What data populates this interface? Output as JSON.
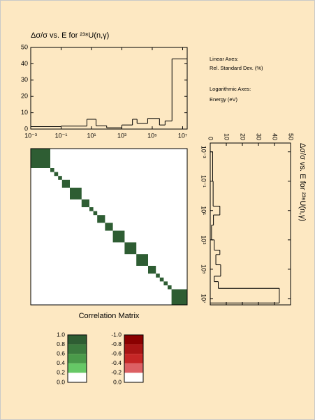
{
  "chart_data": [
    {
      "type": "histogram",
      "orientation": "vertical",
      "title": "Δσ/σ vs. E for ²³⁸U(n,γ)",
      "annotations": [
        "Linear Axes:",
        "Rel. Standard Dev. (%)",
        "Logarithmic Axes:",
        "Energy (eV)"
      ],
      "bins": [
        0.001,
        0.1,
        5,
        20,
        100,
        1000,
        5000,
        10000,
        50000,
        300000,
        700000,
        2000000,
        20000000
      ],
      "values": [
        1.5,
        1.8,
        6,
        2,
        0.8,
        2.5,
        6,
        3.5,
        6.5,
        2.5,
        5,
        43
      ],
      "xlog": true,
      "xlim": [
        0.001,
        20000000
      ],
      "xticks": [
        {
          "value": 0.001,
          "label": "10⁻³"
        },
        {
          "value": 0.1,
          "label": "10⁻¹"
        },
        {
          "value": 10,
          "label": "10¹"
        },
        {
          "value": 1000,
          "label": "10³"
        },
        {
          "value": 100000,
          "label": "10⁵"
        },
        {
          "value": 10000000,
          "label": "10⁷"
        }
      ],
      "ylim": [
        0,
        50
      ],
      "yticks": [
        0,
        10,
        20,
        30,
        40,
        50
      ],
      "color": "#000000"
    },
    {
      "type": "histogram",
      "orientation": "horizontal",
      "title": "Δσ/σ vs. E for ²³⁸U(n,γ)",
      "bins": [
        0.001,
        0.1,
        5,
        20,
        100,
        1000,
        5000,
        10000,
        50000,
        300000,
        700000,
        2000000,
        20000000
      ],
      "values": [
        1.5,
        1.8,
        6,
        2,
        0.8,
        2.5,
        6,
        3.5,
        6.5,
        2.5,
        5,
        43
      ],
      "ylog": true,
      "ylim": [
        0.00025,
        27000000
      ],
      "yticks": [
        {
          "value": 0.001,
          "label": "10⁻³"
        },
        {
          "value": 0.1,
          "label": "10⁻¹"
        },
        {
          "value": 10,
          "label": "10¹"
        },
        {
          "value": 1000,
          "label": "10³"
        },
        {
          "value": 100000,
          "label": "10⁵"
        },
        {
          "value": 10000000,
          "label": "10⁷"
        }
      ],
      "xlim": [
        0,
        50
      ],
      "xticks": [
        0,
        10,
        20,
        30,
        40,
        50
      ],
      "color": "#000000"
    },
    {
      "type": "matrix",
      "title": "Correlation Matrix",
      "group_sizes": [
        5,
        1,
        1,
        1,
        2,
        3,
        2,
        1,
        1,
        2,
        2,
        3,
        3,
        3,
        2,
        1,
        1,
        1,
        1,
        4
      ],
      "values": [
        1,
        1,
        1,
        1,
        1,
        1,
        1,
        1,
        1,
        1,
        1,
        1,
        1,
        1,
        1,
        1,
        1,
        1,
        1,
        1
      ]
    },
    {
      "type": "colorbar",
      "ticks": [
        {
          "value": 1,
          "label": "1.0"
        },
        0.8,
        0.6,
        0.4,
        0.2,
        {
          "value": 0,
          "label": "0.0"
        }
      ],
      "colors": [
        "#2e5d33",
        "#3b7a3e",
        "#4a9a4a",
        "#66c866",
        "#ffffff"
      ]
    },
    {
      "type": "colorbar",
      "ticks": [
        {
          "value": -1,
          "label": "-1.0"
        },
        -0.8,
        -0.6,
        -0.4,
        -0.2,
        {
          "value": 0,
          "label": "0.0"
        }
      ],
      "colors": [
        "#8a0000",
        "#a81414",
        "#c52626",
        "#dc6064",
        "#ffffff"
      ]
    }
  ]
}
